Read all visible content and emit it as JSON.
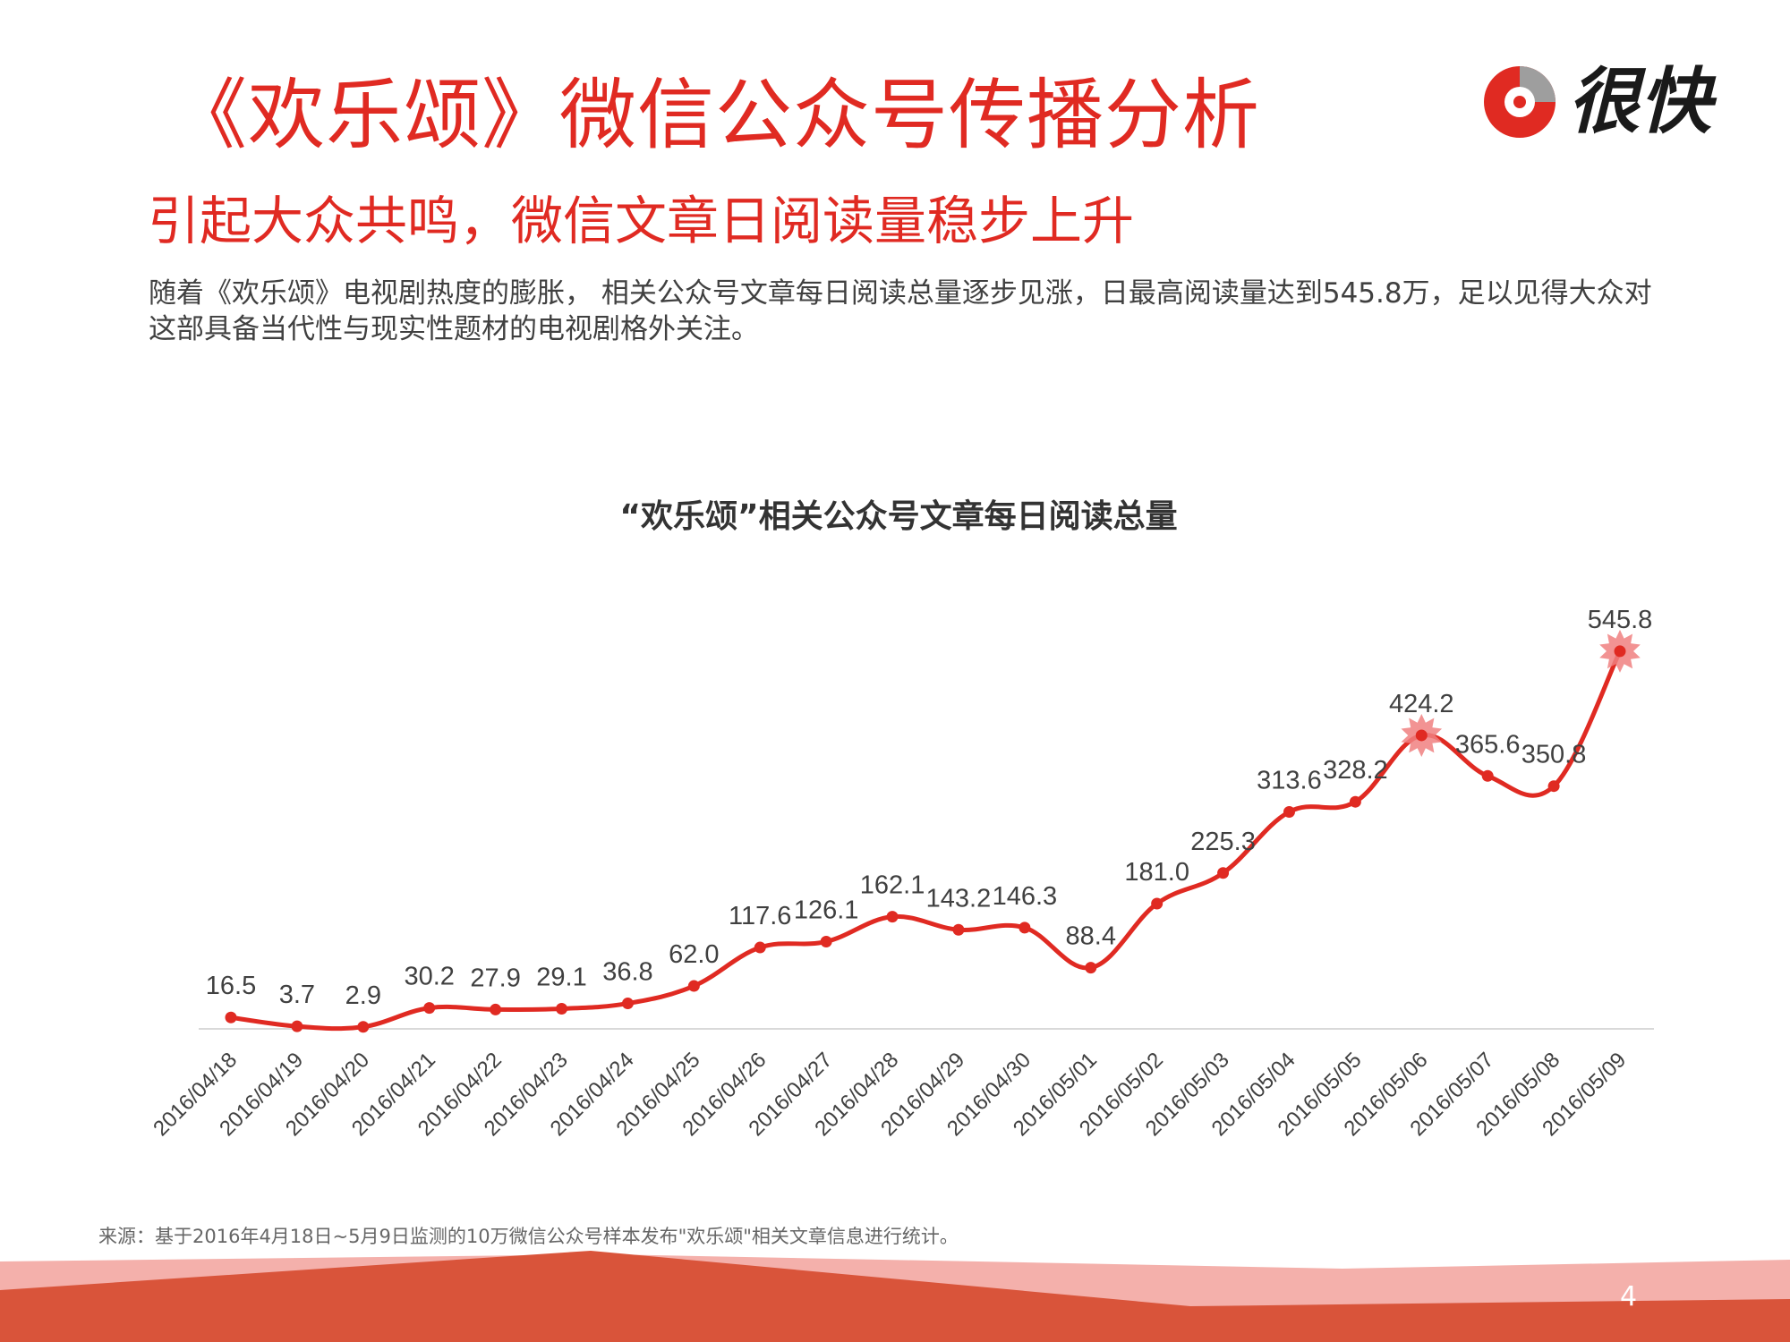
{
  "header": {
    "title": "《欢乐颂》微信公众号传播分析",
    "subtitle": "引起大众共鸣，微信文章日阅读量稳步上升",
    "description": "随着《欢乐颂》电视剧热度的膨胀， 相关公众号文章每日阅读总量逐步见涨，日最高阅读量达到545.8万，足以见得大众对这部具备当代性与现实性题材的电视剧格外关注。"
  },
  "logo": {
    "text": "很快",
    "icon": "hen-kuai-logo-icon"
  },
  "chart_data": {
    "type": "line",
    "title": "“欢乐颂”相关公众号文章每日阅读总量",
    "xlabel": "",
    "ylabel": "",
    "categories": [
      "2016/04/18",
      "2016/04/19",
      "2016/04/20",
      "2016/04/21",
      "2016/04/22",
      "2016/04/23",
      "2016/04/24",
      "2016/04/25",
      "2016/04/26",
      "2016/04/27",
      "2016/04/28",
      "2016/04/29",
      "2016/04/30",
      "2016/05/01",
      "2016/05/02",
      "2016/05/03",
      "2016/05/04",
      "2016/05/05",
      "2016/05/06",
      "2016/05/07",
      "2016/05/08",
      "2016/05/09"
    ],
    "values": [
      16.5,
      3.7,
      2.9,
      30.2,
      27.9,
      29.1,
      36.8,
      62.0,
      117.6,
      126.1,
      162.1,
      143.2,
      146.3,
      88.4,
      181.0,
      225.3,
      313.6,
      328.2,
      424.2,
      365.6,
      350.8,
      545.8
    ],
    "labels": [
      "16.5",
      "3.7",
      "2.9",
      "30.2",
      "27.9",
      "29.1",
      "36.8",
      "62.0",
      "117.6",
      "126.1",
      "162.1",
      "143.2",
      "146.3",
      "88.4",
      "181.0",
      "225.3",
      "313.6",
      "328.2",
      "424.2",
      "365.6",
      "350.8",
      "545.8"
    ],
    "highlighted": [
      "2016/05/06",
      "2016/05/09"
    ],
    "ylim": [
      0,
      600
    ],
    "grid": false,
    "legend": "none",
    "line_color": "#e02a22"
  },
  "footer": {
    "source": "来源：基于2016年4月18日~5月9日监测的10万微信公众号样本发布\"欢乐颂\"相关文章信息进行统计。",
    "page_number": "4"
  },
  "colors": {
    "brand_red": "#e02a22",
    "footer_dark": "#d9543a",
    "footer_light": "#f2a8a4"
  }
}
